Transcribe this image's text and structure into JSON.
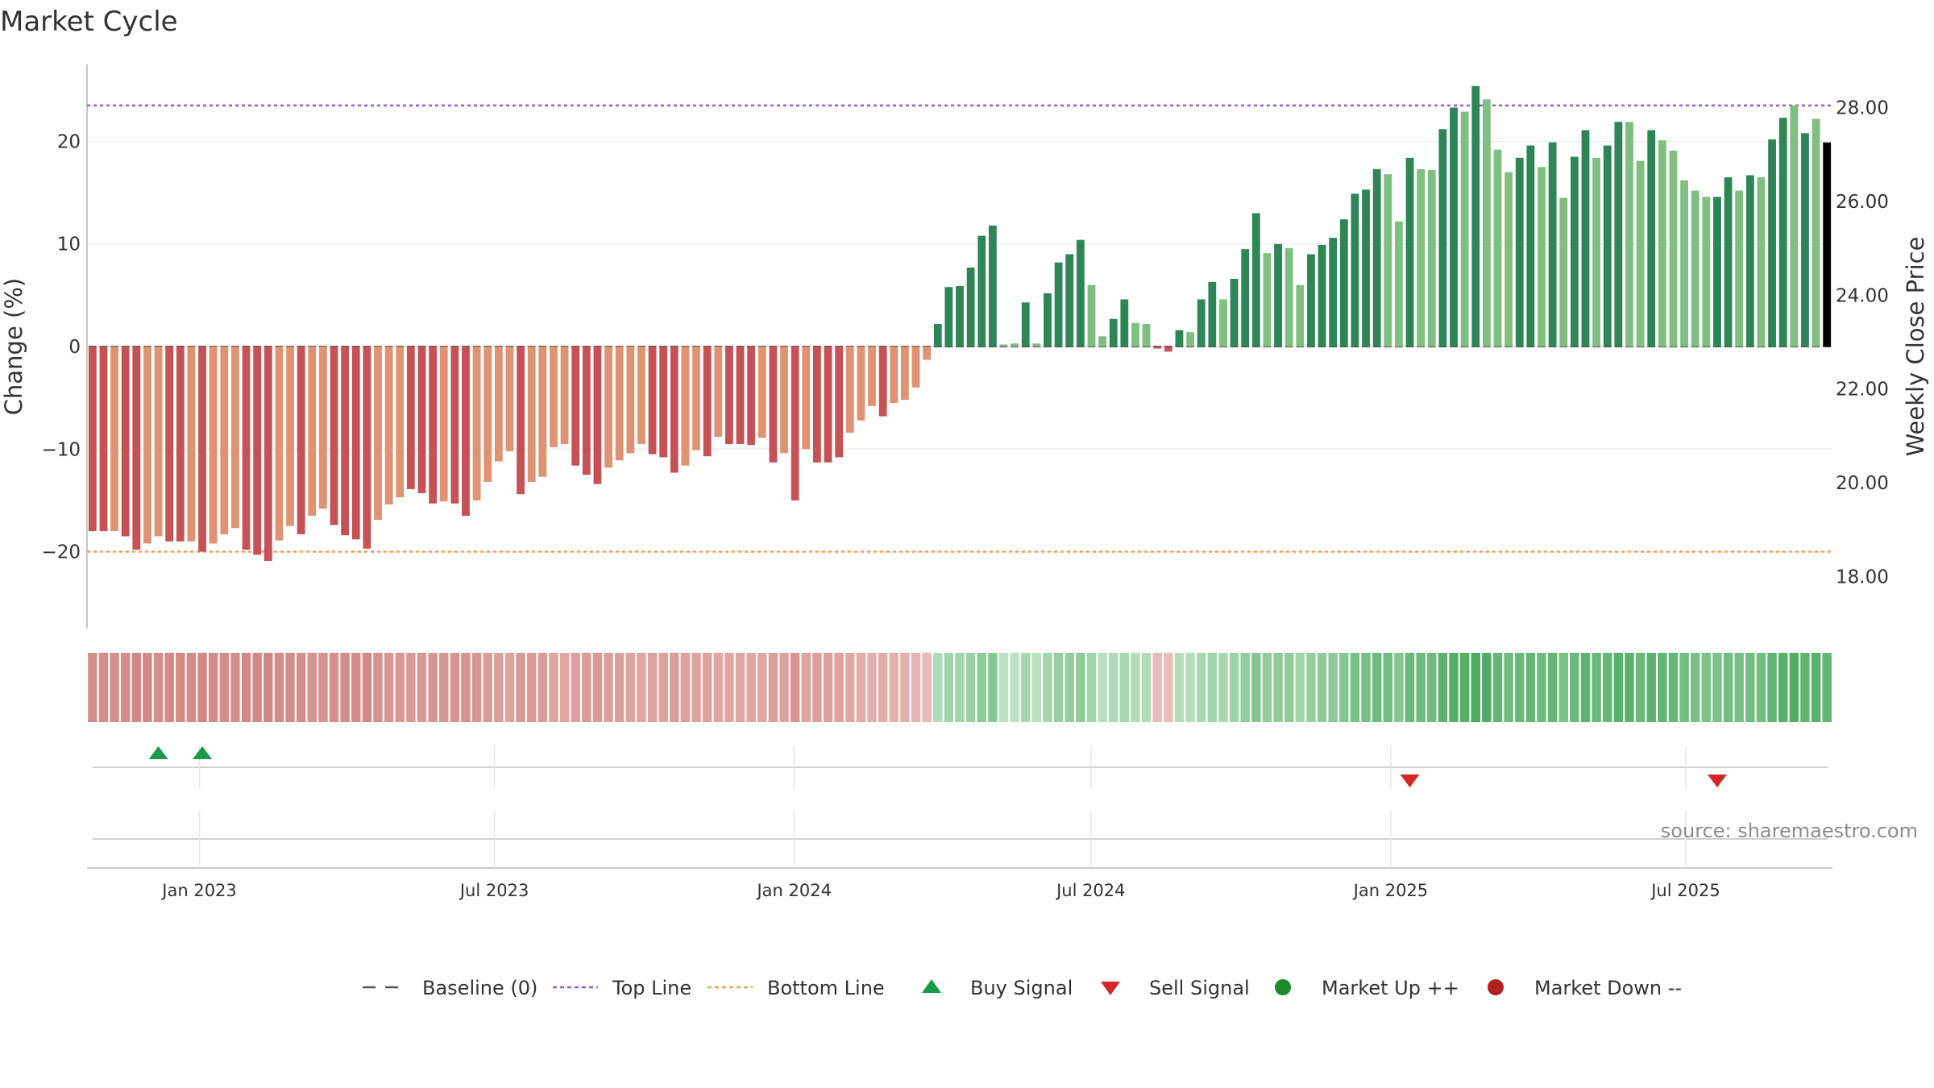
{
  "chart_data": {
    "type": "bar",
    "title": "Market Cycle",
    "ylabel": "Change (%)",
    "y2label": "Weekly Close Price",
    "source": "source: sharemaestro.com",
    "ylim": [
      -27.5,
      27.5
    ],
    "y_ticks": [
      "20",
      "10",
      "0",
      "−10",
      "−20"
    ],
    "y_tick_values": [
      20,
      10,
      0,
      -10,
      -20
    ],
    "y2lim": [
      16.89,
      28.92
    ],
    "y2_ticks": [
      "28.00",
      "26.00",
      "24.00",
      "22.00",
      "20.00",
      "18.00"
    ],
    "y2_tick_values": [
      28,
      26,
      24,
      22,
      20,
      18
    ],
    "top_line": 23.5,
    "bottom_line": -20,
    "x_start": "2022-10-24",
    "x_end": "2025-09-29",
    "x_ticks": [
      "Jan 2023",
      "Jul 2023",
      "Jan 2024",
      "Jul 2024",
      "Jan 2025",
      "Jul 2025"
    ],
    "x_tick_dates": [
      "2023-01-01",
      "2023-07-01",
      "2024-01-01",
      "2024-07-01",
      "2025-01-01",
      "2025-07-01"
    ],
    "first_week": "2022-10-24",
    "values": [
      -18,
      -18,
      -18,
      -18.5,
      -19.8,
      -19.2,
      -18.5,
      -19,
      -19,
      -19,
      -20,
      -19.2,
      -18.3,
      -17.7,
      -19.8,
      -20.3,
      -20.9,
      -18.9,
      -17.5,
      -18.3,
      -16.5,
      -15.8,
      -17.4,
      -18.4,
      -18.8,
      -19.7,
      -16.9,
      -15.4,
      -14.7,
      -13.9,
      -14.3,
      -15.3,
      -15.1,
      -15.3,
      -16.5,
      -15,
      -13.2,
      -11.2,
      -10.2,
      -14.4,
      -13.2,
      -12.7,
      -9.8,
      -9.5,
      -11.6,
      -12.5,
      -13.4,
      -11.8,
      -11.1,
      -10.4,
      -9.5,
      -10.5,
      -10.8,
      -12.3,
      -11.6,
      -10.1,
      -10.7,
      -8.8,
      -9.5,
      -9.5,
      -9.6,
      -8.9,
      -11.3,
      -10.4,
      -15,
      -10,
      -11.3,
      -11.3,
      -10.8,
      -8.4,
      -7.2,
      -5.8,
      -6.8,
      -5.5,
      -5.2,
      -4,
      -1.3,
      2.2,
      5.8,
      5.9,
      7.7,
      10.8,
      11.8,
      0.2,
      0.3,
      4.3,
      0.3,
      5.2,
      8.2,
      9,
      10.4,
      6,
      1,
      2.7,
      4.6,
      2.3,
      2.2,
      -0.2,
      -0.5,
      1.6,
      1.4,
      4.6,
      6.3,
      4.6,
      6.6,
      9.5,
      13,
      9.1,
      10,
      9.6,
      6,
      9,
      9.9,
      10.6,
      12.4,
      14.9,
      15.3,
      17.3,
      16.8,
      12.2,
      18.4,
      17.3,
      17.2,
      21.2,
      23.3,
      22.9,
      25.4,
      24.1,
      19.2,
      17,
      18.4,
      19.6,
      17.5,
      19.9,
      14.5,
      18.5,
      21.1,
      18.4,
      19.6,
      21.9,
      21.9,
      18.1,
      21.1,
      20.1,
      19.1,
      16.2,
      15.2,
      14.6,
      14.6,
      16.5,
      15.2,
      16.7,
      16.5,
      20.2,
      22.3,
      23.5,
      20.8,
      22.2,
      19.9
    ],
    "signal_colors": [
      "#c65256",
      "#c65256",
      "#e09373",
      "#c65256",
      "#c65256",
      "#e09373",
      "#e09373",
      "#c65256",
      "#c65256",
      "#e09373",
      "#c65256",
      "#e09373",
      "#e09373",
      "#e09373",
      "#c65256",
      "#c65256",
      "#c65256",
      "#e09373",
      "#e09373",
      "#c65256",
      "#e09373",
      "#e09373",
      "#c65256",
      "#c65256",
      "#c65256",
      "#c65256",
      "#e09373",
      "#e09373",
      "#e09373",
      "#c65256",
      "#c65256",
      "#c65256",
      "#e09373",
      "#c65256",
      "#c65256",
      "#e09373",
      "#e09373",
      "#e09373",
      "#e09373",
      "#c65256",
      "#e09373",
      "#e09373",
      "#e09373",
      "#e09373",
      "#c65256",
      "#c65256",
      "#c65256",
      "#e09373",
      "#e09373",
      "#e09373",
      "#e09373",
      "#c65256",
      "#c65256",
      "#c65256",
      "#e09373",
      "#e09373",
      "#c65256",
      "#e09373",
      "#c65256",
      "#c65256",
      "#c65256",
      "#e09373",
      "#c65256",
      "#e09373",
      "#c65256",
      "#e09373",
      "#c65256",
      "#c65256",
      "#c65256",
      "#e09373",
      "#e09373",
      "#e09373",
      "#c65256",
      "#e09373",
      "#e09373",
      "#e09373",
      "#e09373",
      "#2e8556",
      "#2e8556",
      "#2e8556",
      "#2e8556",
      "#2e8556",
      "#2e8556",
      "#7fbf7f",
      "#7fbf7f",
      "#2e8556",
      "#7fbf7f",
      "#2e8556",
      "#2e8556",
      "#2e8556",
      "#2e8556",
      "#7fbf7f",
      "#7fbf7f",
      "#2e8556",
      "#2e8556",
      "#7fbf7f",
      "#7fbf7f",
      "#c65256",
      "#c65256",
      "#2e8556",
      "#7fbf7f",
      "#2e8556",
      "#2e8556",
      "#7fbf7f",
      "#2e8556",
      "#2e8556",
      "#2e8556",
      "#7fbf7f",
      "#2e8556",
      "#7fbf7f",
      "#7fbf7f",
      "#2e8556",
      "#2e8556",
      "#2e8556",
      "#2e8556",
      "#2e8556",
      "#2e8556",
      "#2e8556",
      "#7fbf7f",
      "#7fbf7f",
      "#2e8556",
      "#7fbf7f",
      "#7fbf7f",
      "#2e8556",
      "#2e8556",
      "#7fbf7f",
      "#2e8556",
      "#7fbf7f",
      "#7fbf7f",
      "#7fbf7f",
      "#2e8556",
      "#2e8556",
      "#7fbf7f",
      "#2e8556",
      "#7fbf7f",
      "#2e8556",
      "#2e8556",
      "#7fbf7f",
      "#2e8556",
      "#2e8556",
      "#7fbf7f",
      "#7fbf7f",
      "#2e8556",
      "#7fbf7f",
      "#7fbf7f",
      "#7fbf7f",
      "#7fbf7f",
      "#7fbf7f",
      "#2e8556",
      "#2e8556",
      "#7fbf7f",
      "#2e8556",
      "#7fbf7f",
      "#2e8556",
      "#2e8556",
      "#7fbf7f",
      "#2e8556",
      "#7fbf7f"
    ],
    "buy_signals": [
      "2022-12-05",
      "2023-01-02"
    ],
    "sell_signals": [
      "2025-02-10",
      "2025-08-25"
    ],
    "legend": [
      {
        "label": "Baseline (0)",
        "marker": "dash",
        "color": "#555555"
      },
      {
        "label": "Top Line",
        "marker": "dotted",
        "color": "#9b59d0"
      },
      {
        "label": "Bottom Line",
        "marker": "dotted",
        "color": "#f0a050"
      },
      {
        "label": "Buy Signal",
        "marker": "triangle-up",
        "color": "#1a9a4a"
      },
      {
        "label": "Sell Signal",
        "marker": "triangle-down",
        "color": "#d62728"
      },
      {
        "label": "Market Up ++",
        "marker": "circle",
        "color": "#1a8a2a"
      },
      {
        "label": "Market Down --",
        "marker": "circle",
        "color": "#b22222"
      }
    ],
    "colors": {
      "down_strong": "#c65256",
      "down_light": "#e09373",
      "up_strong": "#2e8556",
      "up_light": "#7fbf7f",
      "top_line": "#9b59d0",
      "bottom_line": "#f0a050",
      "buy": "#1a9a4a",
      "sell": "#d62728"
    }
  }
}
